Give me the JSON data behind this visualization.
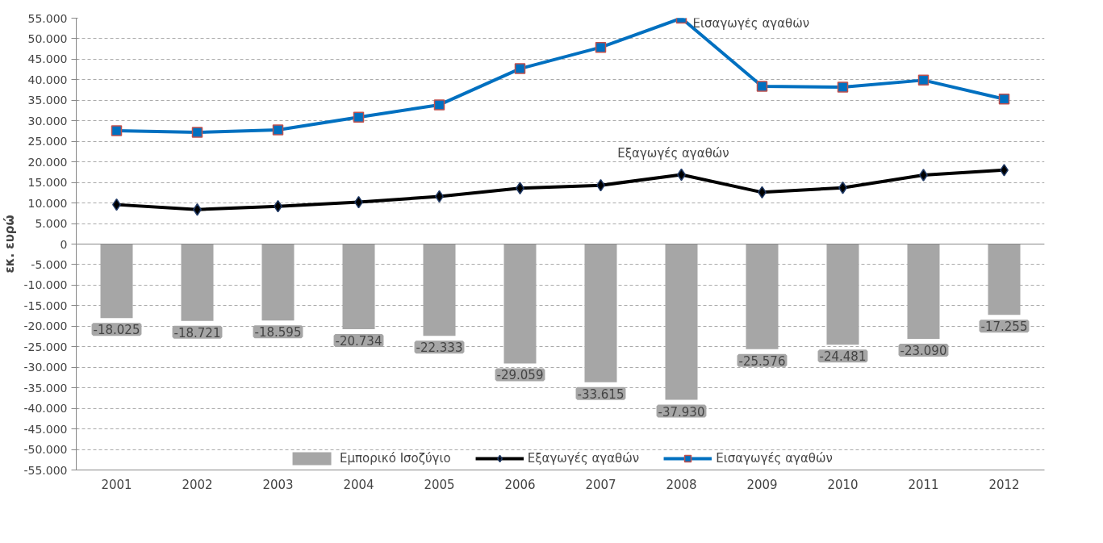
{
  "chart_data": {
    "type": "bar",
    "ylabel": "εκ. ευρώ",
    "categories": [
      "2001",
      "2002",
      "2003",
      "2004",
      "2005",
      "2006",
      "2007",
      "2008",
      "2009",
      "2010",
      "2011",
      "2012"
    ],
    "series": [
      {
        "name": "Εμπορικό Ισοζύγιο",
        "type": "bar",
        "color": "#a6a6a6",
        "values": [
          -18025,
          -18721,
          -18595,
          -20734,
          -22333,
          -29059,
          -33615,
          -37930,
          -25576,
          -24481,
          -23090,
          -17255
        ],
        "value_labels": [
          "-18.025",
          "-18.721",
          "-18.595",
          "-20.734",
          "-22.333",
          "-29.059",
          "-33.615",
          "-37.930",
          "-25.576",
          "-24.481",
          "-23.090",
          "-17.255"
        ]
      },
      {
        "name": "Εξαγωγές αγαθών",
        "type": "line",
        "color": "#000000",
        "marker": "diamond",
        "values": [
          9600,
          8400,
          9200,
          10200,
          11600,
          13600,
          14300,
          16900,
          12600,
          13700,
          16800,
          18000
        ]
      },
      {
        "name": "Εισαγωγές αγαθών",
        "type": "line",
        "color": "#0070c0",
        "marker": "square",
        "values": [
          27600,
          27200,
          27800,
          30900,
          33900,
          42700,
          47900,
          55000,
          38400,
          38200,
          39900,
          35300
        ]
      }
    ],
    "ylim": [
      -55000,
      55000
    ],
    "yticks": [
      {
        "value": -55000,
        "label": "-55.000"
      },
      {
        "value": -50000,
        "label": "-50.000"
      },
      {
        "value": -45000,
        "label": "-45.000"
      },
      {
        "value": -40000,
        "label": "-40.000"
      },
      {
        "value": -35000,
        "label": "-35.000"
      },
      {
        "value": -30000,
        "label": "-30.000"
      },
      {
        "value": -25000,
        "label": "-25.000"
      },
      {
        "value": -20000,
        "label": "-20.000"
      },
      {
        "value": -15000,
        "label": "-15.000"
      },
      {
        "value": -10000,
        "label": "-10.000"
      },
      {
        "value": -5000,
        "label": "-5.000"
      },
      0,
      {
        "value": 5000,
        "label": "5.000"
      },
      {
        "value": 10000,
        "label": "10.000"
      },
      {
        "value": 15000,
        "label": "15.000"
      },
      {
        "value": 20000,
        "label": "20.000"
      },
      {
        "value": 25000,
        "label": "25.000"
      },
      {
        "value": 30000,
        "label": "30.000"
      },
      {
        "value": 35000,
        "label": "35.000"
      },
      {
        "value": 40000,
        "label": "40.000"
      },
      {
        "value": 45000,
        "label": "45.000"
      },
      {
        "value": 50000,
        "label": "50.000"
      },
      {
        "value": 55000,
        "label": "55.000"
      }
    ],
    "annotations": [
      {
        "text": "Εισαγωγές αγαθών",
        "x": "2008",
        "y": 55000
      },
      {
        "text": "Εξαγωγές αγαθών",
        "x": "2008",
        "y": 16900
      }
    ],
    "grid": "y",
    "legend": "bottom"
  }
}
